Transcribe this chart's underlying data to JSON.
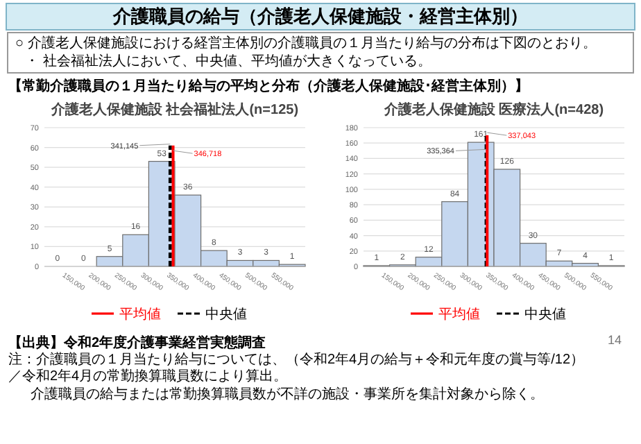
{
  "chart_data": [
    {
      "type": "histogram",
      "title": "介護老人保健施設 社会福祉法人(n=125)",
      "bins": [
        100000,
        150000,
        200000,
        250000,
        300000,
        350000,
        400000,
        450000,
        500000,
        550000,
        600000
      ],
      "values": [
        0,
        0,
        5,
        16,
        53,
        36,
        8,
        3,
        3,
        1
      ],
      "color": "#c5d7ef",
      "data_labels": true,
      "xlim": [
        100000,
        600000
      ],
      "xticks": [
        {
          "value": 150000,
          "label": "150,000"
        },
        {
          "value": 200000,
          "label": "200,000"
        },
        {
          "value": 250000,
          "label": "250,000"
        },
        {
          "value": 300000,
          "label": "300,000"
        },
        {
          "value": 350000,
          "label": "350,000"
        },
        {
          "value": 400000,
          "label": "400,000"
        },
        {
          "value": 450000,
          "label": "450,000"
        },
        {
          "value": 500000,
          "label": "500,000"
        },
        {
          "value": 550000,
          "label": "550,000"
        }
      ],
      "ylim": [
        0,
        70
      ],
      "yticks": [
        0,
        10,
        20,
        30,
        40,
        50,
        60,
        70
      ],
      "grid": "y",
      "legend": "bottom",
      "ref_lines": [
        {
          "axis": "x",
          "value": 346718,
          "label": "平均値",
          "color": "#ff0000",
          "line_style": "solid"
        },
        {
          "axis": "x",
          "value": 341145,
          "label": "中央値",
          "color": "#000000",
          "line_style": "dashed"
        }
      ],
      "annotations": [
        "介護職員の給与（介護老人保健施設・経営主体別）",
        "○ 介護老人保健施設における経営主体別の介護職員の１月当たり給与の分布は下図のとおり。",
        "・ 社会福祉法人において、中央値、平均値が大きくなっている。",
        "【常勤介護職員の１月当たり給与の平均と分布（介護老人保健施設･経営主体別）】",
        "【出典】令和2年度介護事業経営実態調査",
        "注：介護職員の１月当たり給与については、（令和2年4月の給与＋令和元年度の賞与等/12）／令和2年4月の常勤換算職員数により算出。",
        "介護職員の給与または常勤換算職員数が不詳の施設・事業所を集計対象から除く。",
        "14",
        {
          "text": "341,145",
          "x": 341145,
          "y": 61
        },
        {
          "text": "346,718",
          "x": 346718,
          "y": 57
        }
      ]
    },
    {
      "type": "histogram",
      "title": "介護老人保健施設 医療法人(n=428)",
      "bins": [
        100000,
        150000,
        200000,
        250000,
        300000,
        350000,
        400000,
        450000,
        500000,
        550000,
        600000
      ],
      "values": [
        1,
        2,
        12,
        84,
        161,
        126,
        30,
        7,
        4,
        1
      ],
      "color": "#c5d7ef",
      "data_labels": true,
      "xlim": [
        100000,
        600000
      ],
      "xticks": [
        {
          "value": 150000,
          "label": "150,000"
        },
        {
          "value": 200000,
          "label": "200,000"
        },
        {
          "value": 250000,
          "label": "250,000"
        },
        {
          "value": 300000,
          "label": "300,000"
        },
        {
          "value": 350000,
          "label": "350,000"
        },
        {
          "value": 400000,
          "label": "400,000"
        },
        {
          "value": 450000,
          "label": "450,000"
        },
        {
          "value": 500000,
          "label": "500,000"
        },
        {
          "value": 550000,
          "label": "550,000"
        }
      ],
      "ylim": [
        0,
        180
      ],
      "yticks": [
        0,
        20,
        40,
        60,
        80,
        100,
        120,
        140,
        160,
        180
      ],
      "grid": "y",
      "legend": "bottom",
      "ref_lines": [
        {
          "axis": "x",
          "value": 337043,
          "label": "平均値",
          "color": "#ff0000",
          "line_style": "solid"
        },
        {
          "axis": "x",
          "value": 335364,
          "label": "中央値",
          "color": "#000000",
          "line_style": "dashed"
        }
      ],
      "annotations": [
        {
          "text": "335,364",
          "x": 335364,
          "y": 150
        },
        {
          "text": "337,043",
          "x": 337043,
          "y": 170
        }
      ]
    }
  ]
}
